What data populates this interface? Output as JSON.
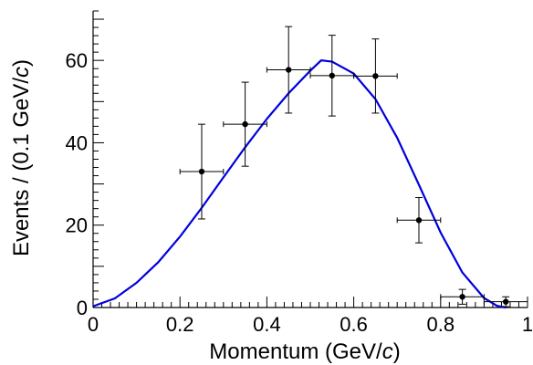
{
  "chart_data": {
    "type": "scatter",
    "xlabel_main": "Momentum (GeV/",
    "xlabel_unit": "c",
    "xlabel_end": ")",
    "ylabel_main": "Events / (0.1 GeV/",
    "ylabel_unit": "c",
    "ylabel_end": ")",
    "xlim": [
      0,
      1
    ],
    "ylim": [
      0,
      72
    ],
    "x_ticks": [
      0,
      0.2,
      0.4,
      0.6,
      0.8,
      1
    ],
    "x_tick_labels": [
      "0",
      "0.2",
      "0.4",
      "0.6",
      "0.8",
      "1"
    ],
    "y_ticks": [
      0,
      20,
      40,
      60
    ],
    "y_tick_labels": [
      "0",
      "20",
      "40",
      "60"
    ],
    "grid": false,
    "curve_color": "#0000dd",
    "series": [
      {
        "points": [
          {
            "x": 0.25,
            "y": 33,
            "xerr": 0.05,
            "yerr_low": 11.5,
            "yerr_high": 11.5
          },
          {
            "x": 0.35,
            "y": 44.5,
            "xerr": 0.05,
            "yerr_low": 10.2,
            "yerr_high": 10.2
          },
          {
            "x": 0.45,
            "y": 57.7,
            "xerr": 0.05,
            "yerr_low": 10.5,
            "yerr_high": 10.5
          },
          {
            "x": 0.55,
            "y": 56.3,
            "xerr": 0.05,
            "yerr_low": 9.8,
            "yerr_high": 9.8
          },
          {
            "x": 0.65,
            "y": 56.2,
            "xerr": 0.05,
            "yerr_low": 9.0,
            "yerr_high": 9.0
          },
          {
            "x": 0.75,
            "y": 21.2,
            "xerr": 0.05,
            "yerr_low": 5.5,
            "yerr_high": 5.5
          },
          {
            "x": 0.85,
            "y": 2.6,
            "xerr": 0.05,
            "yerr_low": 1.8,
            "yerr_high": 1.8
          },
          {
            "x": 0.95,
            "y": 1.4,
            "xerr": 0.05,
            "yerr_low": 1.2,
            "yerr_high": 1.2
          }
        ]
      }
    ],
    "fit_curve": [
      [
        0.0,
        0.3
      ],
      [
        0.05,
        2.2
      ],
      [
        0.1,
        6.0
      ],
      [
        0.15,
        11.0
      ],
      [
        0.2,
        17.2
      ],
      [
        0.25,
        24.2
      ],
      [
        0.3,
        31.6
      ],
      [
        0.35,
        38.9
      ],
      [
        0.4,
        45.8
      ],
      [
        0.45,
        52.0
      ],
      [
        0.5,
        57.5
      ],
      [
        0.525,
        60.0
      ],
      [
        0.55,
        59.7
      ],
      [
        0.6,
        56.8
      ],
      [
        0.65,
        50.6
      ],
      [
        0.7,
        41.2
      ],
      [
        0.75,
        29.8
      ],
      [
        0.8,
        18.2
      ],
      [
        0.85,
        8.5
      ],
      [
        0.9,
        2.3
      ],
      [
        0.93,
        0.4
      ],
      [
        0.95,
        0.0
      ]
    ]
  }
}
